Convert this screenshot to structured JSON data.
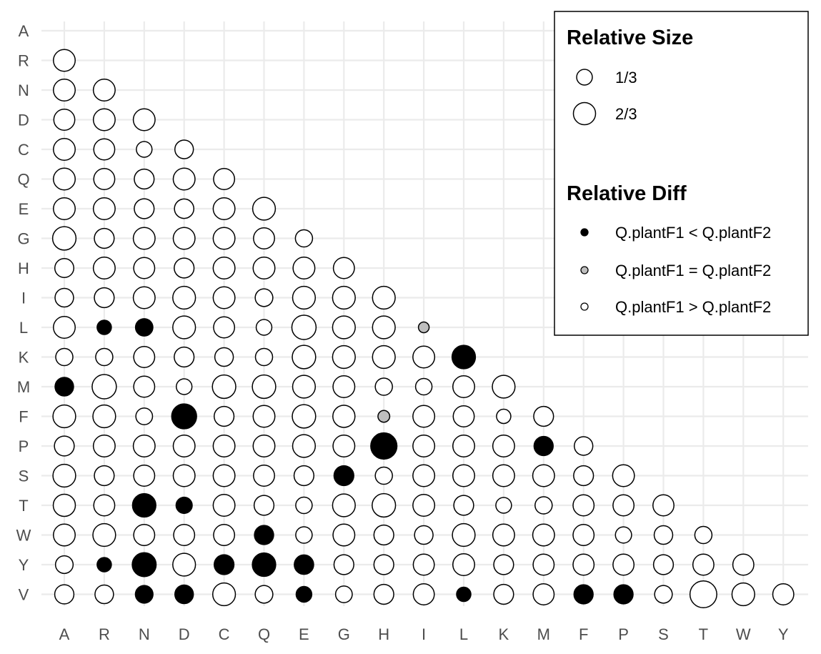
{
  "chart_data": {
    "type": "scatter",
    "xlabel": "",
    "ylabel": "",
    "x_categories": [
      "A",
      "R",
      "N",
      "D",
      "C",
      "Q",
      "E",
      "G",
      "H",
      "I",
      "L",
      "K",
      "M",
      "F",
      "P",
      "S",
      "T",
      "W",
      "Y"
    ],
    "y_categories": [
      "A",
      "R",
      "N",
      "D",
      "C",
      "Q",
      "E",
      "G",
      "H",
      "I",
      "L",
      "K",
      "M",
      "F",
      "P",
      "S",
      "T",
      "W",
      "Y",
      "V"
    ],
    "grid": true,
    "legend_position": "top-right",
    "diff_colors": {
      "less": "#000000",
      "equal": "#bebebe",
      "greater": "#ffffff"
    },
    "size_legend": {
      "title": "Relative Size",
      "items": [
        {
          "label": "1/3",
          "value": 0.333
        },
        {
          "label": "2/3",
          "value": 0.667
        }
      ]
    },
    "diff_legend": {
      "title": "Relative Diff",
      "items": [
        {
          "label": "Q.plantF1 < Q.plantF2",
          "diff": "less"
        },
        {
          "label": "Q.plantF1 = Q.plantF2",
          "diff": "equal"
        },
        {
          "label": "Q.plantF1 > Q.plantF2",
          "diff": "greater"
        }
      ]
    },
    "rows": [
      {
        "y": "R",
        "sizes": [
          0.58
        ],
        "diffs": [
          "g"
        ]
      },
      {
        "y": "N",
        "sizes": [
          0.58,
          0.58
        ],
        "diffs": [
          "g",
          "g"
        ]
      },
      {
        "y": "D",
        "sizes": [
          0.54,
          0.58,
          0.58
        ],
        "diffs": [
          "g",
          "g",
          "g"
        ]
      },
      {
        "y": "C",
        "sizes": [
          0.58,
          0.54,
          0.3,
          0.42
        ],
        "diffs": [
          "g",
          "g",
          "g",
          "g"
        ]
      },
      {
        "y": "Q",
        "sizes": [
          0.58,
          0.54,
          0.48,
          0.58,
          0.54
        ],
        "diffs": [
          "g",
          "g",
          "g",
          "g",
          "g"
        ]
      },
      {
        "y": "E",
        "sizes": [
          0.58,
          0.58,
          0.48,
          0.46,
          0.58,
          0.63
        ],
        "diffs": [
          "g",
          "g",
          "g",
          "g",
          "g",
          "g"
        ]
      },
      {
        "y": "G",
        "sizes": [
          0.67,
          0.48,
          0.58,
          0.58,
          0.58,
          0.54,
          0.36
        ],
        "diffs": [
          "g",
          "g",
          "g",
          "g",
          "g",
          "g",
          "g"
        ]
      },
      {
        "y": "H",
        "sizes": [
          0.44,
          0.58,
          0.54,
          0.48,
          0.58,
          0.58,
          0.58,
          0.54
        ],
        "diffs": [
          "g",
          "g",
          "g",
          "g",
          "g",
          "g",
          "g",
          "g"
        ]
      },
      {
        "y": "I",
        "sizes": [
          0.42,
          0.48,
          0.58,
          0.63,
          0.58,
          0.38,
          0.63,
          0.63,
          0.63
        ],
        "diffs": [
          "g",
          "g",
          "g",
          "g",
          "g",
          "g",
          "g",
          "g",
          "g"
        ]
      },
      {
        "y": "L",
        "sizes": [
          0.58,
          0.25,
          0.37,
          0.63,
          0.54,
          0.3,
          0.72,
          0.63,
          0.63,
          0.14
        ],
        "diffs": [
          "g",
          "l",
          "l",
          "g",
          "g",
          "g",
          "g",
          "g",
          "g",
          "e"
        ]
      },
      {
        "y": "K",
        "sizes": [
          0.36,
          0.36,
          0.54,
          0.48,
          0.42,
          0.36,
          0.67,
          0.63,
          0.63,
          0.58,
          0.67
        ],
        "diffs": [
          "g",
          "g",
          "g",
          "g",
          "g",
          "g",
          "g",
          "g",
          "g",
          "g",
          "l"
        ]
      },
      {
        "y": "M",
        "sizes": [
          0.42,
          0.72,
          0.54,
          0.3,
          0.67,
          0.67,
          0.63,
          0.58,
          0.36,
          0.33,
          0.58,
          0.63
        ],
        "diffs": [
          "l",
          "g",
          "g",
          "g",
          "g",
          "g",
          "g",
          "g",
          "g",
          "g",
          "g",
          "g"
        ]
      },
      {
        "y": "F",
        "sizes": [
          0.63,
          0.63,
          0.34,
          0.76,
          0.48,
          0.58,
          0.67,
          0.6,
          0.17,
          0.58,
          0.54,
          0.25,
          0.48
        ],
        "diffs": [
          "g",
          "g",
          "g",
          "l",
          "g",
          "g",
          "g",
          "g",
          "e",
          "g",
          "g",
          "g",
          "g"
        ]
      },
      {
        "y": "P",
        "sizes": [
          0.48,
          0.58,
          0.58,
          0.58,
          0.58,
          0.58,
          0.63,
          0.58,
          0.84,
          0.58,
          0.58,
          0.58,
          0.45,
          0.42
        ],
        "diffs": [
          "g",
          "g",
          "g",
          "g",
          "g",
          "g",
          "g",
          "g",
          "l",
          "g",
          "g",
          "g",
          "l",
          "g"
        ]
      },
      {
        "y": "S",
        "sizes": [
          0.63,
          0.48,
          0.54,
          0.58,
          0.58,
          0.54,
          0.48,
          0.48,
          0.36,
          0.58,
          0.58,
          0.58,
          0.58,
          0.48,
          0.58
        ],
        "diffs": [
          "g",
          "g",
          "g",
          "g",
          "g",
          "g",
          "g",
          "l",
          "g",
          "g",
          "g",
          "g",
          "g",
          "g",
          "g"
        ]
      },
      {
        "y": "T",
        "sizes": [
          0.6,
          0.54,
          0.67,
          0.32,
          0.58,
          0.48,
          0.33,
          0.63,
          0.67,
          0.58,
          0.48,
          0.3,
          0.36,
          0.54,
          0.54,
          0.54
        ],
        "diffs": [
          "g",
          "g",
          "l",
          "l",
          "g",
          "g",
          "g",
          "g",
          "g",
          "g",
          "g",
          "g",
          "g",
          "g",
          "g",
          "g"
        ]
      },
      {
        "y": "W",
        "sizes": [
          0.58,
          0.63,
          0.54,
          0.54,
          0.54,
          0.45,
          0.33,
          0.58,
          0.48,
          0.42,
          0.63,
          0.58,
          0.58,
          0.54,
          0.32,
          0.42,
          0.36
        ],
        "diffs": [
          "g",
          "g",
          "g",
          "g",
          "g",
          "l",
          "g",
          "g",
          "g",
          "g",
          "g",
          "g",
          "g",
          "g",
          "g",
          "g",
          "g"
        ]
      },
      {
        "y": "Y",
        "sizes": [
          0.38,
          0.25,
          0.7,
          0.63,
          0.48,
          0.67,
          0.46,
          0.48,
          0.48,
          0.54,
          0.58,
          0.48,
          0.54,
          0.54,
          0.54,
          0.48,
          0.54,
          0.54
        ],
        "diffs": [
          "g",
          "l",
          "l",
          "g",
          "l",
          "l",
          "l",
          "g",
          "g",
          "g",
          "g",
          "g",
          "g",
          "g",
          "g",
          "g",
          "g",
          "g"
        ]
      },
      {
        "y": "V",
        "sizes": [
          0.45,
          0.42,
          0.38,
          0.42,
          0.63,
          0.38,
          0.3,
          0.34,
          0.48,
          0.54,
          0.25,
          0.48,
          0.54,
          0.45,
          0.45,
          0.38,
          0.88,
          0.63,
          0.54
        ],
        "diffs": [
          "g",
          "g",
          "l",
          "l",
          "g",
          "g",
          "l",
          "g",
          "g",
          "g",
          "l",
          "g",
          "g",
          "l",
          "l",
          "g",
          "g",
          "g",
          "g"
        ]
      }
    ]
  }
}
